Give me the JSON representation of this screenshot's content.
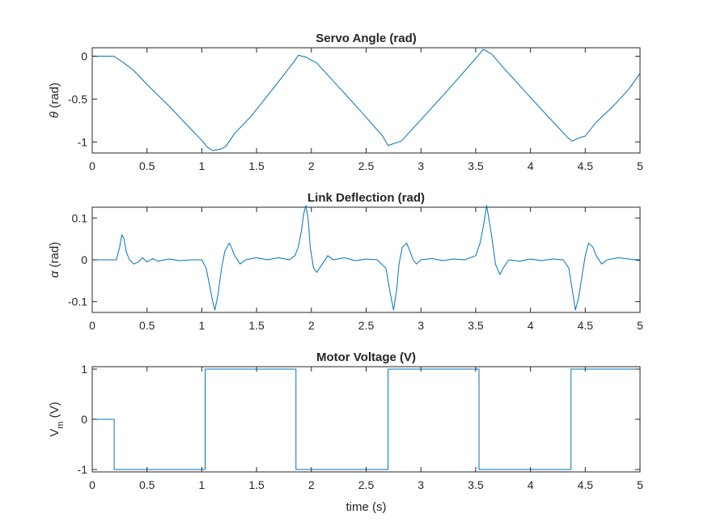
{
  "chart_data": [
    {
      "type": "line",
      "title": "Servo Angle (rad)",
      "xlabel": "",
      "ylabel_symbol": "θ",
      "ylabel_unit": " (rad)",
      "xlim": [
        0,
        5
      ],
      "ylim": [
        -1.1,
        0.07
      ],
      "x_ticks": [
        0,
        0.5,
        1,
        1.5,
        2,
        2.5,
        3,
        3.5,
        4,
        4.5,
        5
      ],
      "x_tick_labels": [
        "0",
        "0.5",
        "1",
        "1.5",
        "2",
        "2.5",
        "3",
        "3.5",
        "4",
        "4.5",
        "5"
      ],
      "y_ticks": [
        0,
        -0.5,
        -1
      ],
      "y_tick_labels": [
        "0",
        "-0.5",
        "-1"
      ],
      "grid": false,
      "series": [
        {
          "color": "#0072BD",
          "x": [
            0,
            0.2,
            0.22,
            0.28,
            0.38,
            0.5,
            0.7,
            0.9,
            1.0,
            1.05,
            1.1,
            1.18,
            1.22,
            1.3,
            1.45,
            1.65,
            1.85,
            1.88,
            1.95,
            2.05,
            2.25,
            2.45,
            2.65,
            2.7,
            2.75,
            2.82,
            2.9,
            3.05,
            3.25,
            3.45,
            3.53,
            3.57,
            3.6,
            3.65,
            3.75,
            3.95,
            4.15,
            4.35,
            4.38,
            4.45,
            4.5,
            4.6,
            4.75,
            4.9,
            5.0
          ],
          "y": [
            0,
            0,
            -0.02,
            -0.07,
            -0.17,
            -0.33,
            -0.58,
            -0.85,
            -0.98,
            -1.06,
            -1.1,
            -1.08,
            -1.05,
            -0.9,
            -0.7,
            -0.38,
            -0.05,
            0.01,
            -0.01,
            -0.08,
            -0.36,
            -0.64,
            -0.93,
            -1.04,
            -1.02,
            -0.99,
            -0.88,
            -0.67,
            -0.39,
            -0.1,
            0.02,
            0.08,
            0.06,
            0.02,
            -0.13,
            -0.41,
            -0.69,
            -0.96,
            -0.99,
            -0.95,
            -0.93,
            -0.77,
            -0.59,
            -0.38,
            -0.2
          ]
        }
      ]
    },
    {
      "type": "line",
      "title": "Link Deflection (rad)",
      "xlabel": "",
      "ylabel_symbol": "α",
      "ylabel_unit": " (rad)",
      "xlim": [
        0,
        5
      ],
      "ylim": [
        -0.12,
        0.12
      ],
      "x_ticks": [
        0,
        0.5,
        1,
        1.5,
        2,
        2.5,
        3,
        3.5,
        4,
        4.5,
        5
      ],
      "x_tick_labels": [
        "0",
        "0.5",
        "1",
        "1.5",
        "2",
        "2.5",
        "3",
        "3.5",
        "4",
        "4.5",
        "5"
      ],
      "y_ticks": [
        0.1,
        0,
        -0.1
      ],
      "y_tick_labels": [
        "0.1",
        "0",
        "-0.1"
      ],
      "grid": false,
      "series": [
        {
          "color": "#0072BD",
          "x": [
            0,
            0.22,
            0.25,
            0.27,
            0.29,
            0.31,
            0.34,
            0.38,
            0.42,
            0.46,
            0.5,
            0.55,
            0.6,
            0.7,
            0.8,
            0.9,
            1.0,
            1.04,
            1.07,
            1.1,
            1.12,
            1.15,
            1.18,
            1.21,
            1.25,
            1.27,
            1.3,
            1.35,
            1.4,
            1.5,
            1.6,
            1.7,
            1.8,
            1.85,
            1.88,
            1.91,
            1.93,
            1.95,
            1.97,
            1.99,
            2.02,
            2.05,
            2.1,
            2.15,
            2.2,
            2.3,
            2.4,
            2.5,
            2.6,
            2.68,
            2.72,
            2.75,
            2.78,
            2.8,
            2.83,
            2.87,
            2.9,
            2.93,
            2.96,
            3.0,
            3.1,
            3.2,
            3.3,
            3.4,
            3.5,
            3.54,
            3.57,
            3.6,
            3.62,
            3.65,
            3.68,
            3.72,
            3.75,
            3.8,
            3.9,
            4.0,
            4.1,
            4.2,
            4.3,
            4.35,
            4.38,
            4.41,
            4.44,
            4.47,
            4.5,
            4.53,
            4.57,
            4.6,
            4.65,
            4.7,
            4.8,
            4.9,
            5.0
          ],
          "y": [
            0,
            0,
            0.03,
            0.06,
            0.05,
            0.02,
            0.0,
            -0.01,
            -0.005,
            0.005,
            -0.005,
            0.003,
            -0.003,
            0.002,
            -0.002,
            0.0,
            0,
            -0.02,
            -0.06,
            -0.1,
            -0.12,
            -0.08,
            -0.02,
            0.02,
            0.04,
            0.03,
            0.01,
            -0.01,
            0.0,
            0.005,
            0.0,
            0.005,
            0.0,
            0.01,
            0.03,
            0.07,
            0.11,
            0.13,
            0.1,
            0.03,
            -0.02,
            -0.03,
            -0.01,
            0.01,
            0.0,
            0.005,
            -0.002,
            0.002,
            0,
            -0.02,
            -0.08,
            -0.12,
            -0.07,
            -0.01,
            0.03,
            0.04,
            0.02,
            0.0,
            -0.01,
            0.0,
            0.003,
            -0.002,
            0.002,
            0.0,
            0.01,
            0.04,
            0.08,
            0.13,
            0.1,
            0.05,
            -0.01,
            -0.035,
            -0.02,
            0.0,
            -0.003,
            0.002,
            -0.002,
            0.002,
            0.0,
            -0.02,
            -0.07,
            -0.12,
            -0.09,
            -0.04,
            0.01,
            0.04,
            0.03,
            0.01,
            -0.01,
            0.0,
            0.005,
            0.002,
            -0.002
          ]
        }
      ]
    },
    {
      "type": "line",
      "title": "Motor Voltage (V)",
      "xlabel": "time (s)",
      "ylabel_symbol": "V",
      "ylabel_sub": "m",
      "ylabel_unit": " (V)",
      "xlim": [
        0,
        5
      ],
      "ylim": [
        -1,
        1
      ],
      "x_ticks": [
        0,
        0.5,
        1,
        1.5,
        2,
        2.5,
        3,
        3.5,
        4,
        4.5,
        5
      ],
      "x_tick_labels": [
        "0",
        "0.5",
        "1",
        "1.5",
        "2",
        "2.5",
        "3",
        "3.5",
        "4",
        "4.5",
        "5"
      ],
      "y_ticks": [
        1,
        0,
        -1
      ],
      "y_tick_labels": [
        "1",
        "0",
        "-1"
      ],
      "grid": false,
      "series": [
        {
          "color": "#0072BD",
          "x": [
            0,
            0.2,
            0.2,
            1.03,
            1.03,
            1.86,
            1.86,
            2.7,
            2.7,
            3.53,
            3.53,
            4.37,
            4.37,
            5.0
          ],
          "y": [
            0,
            0,
            -1,
            -1,
            1,
            1,
            -1,
            -1,
            1,
            1,
            -1,
            -1,
            1,
            1
          ]
        }
      ]
    }
  ]
}
